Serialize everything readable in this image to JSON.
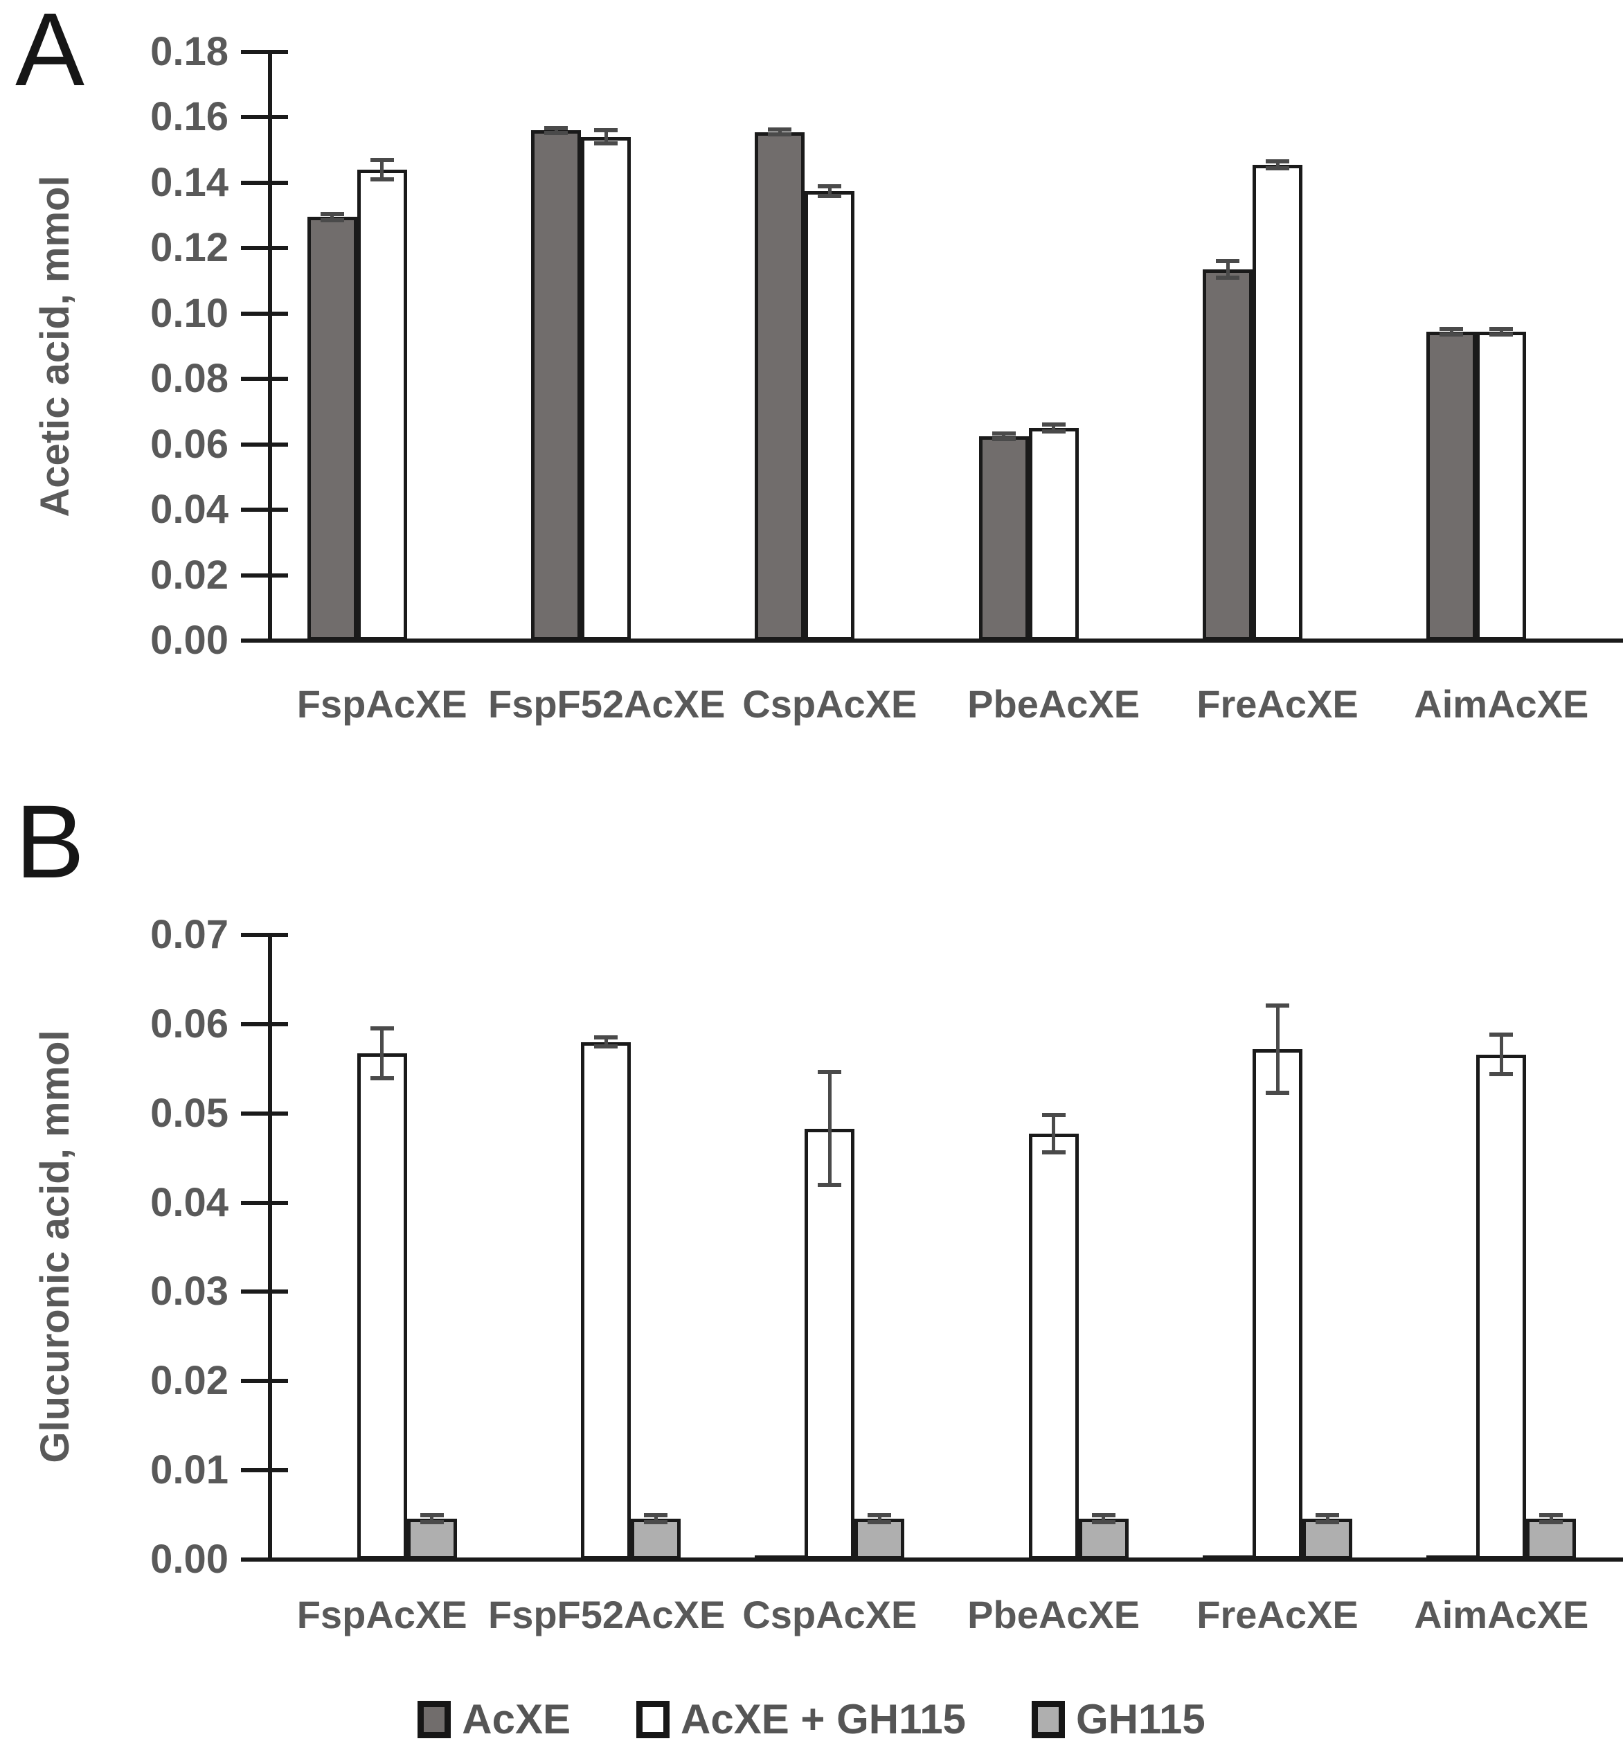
{
  "figure": {
    "panels": [
      {
        "label": "A"
      },
      {
        "label": "B"
      }
    ]
  },
  "legend": {
    "items": [
      {
        "label": "AcXE",
        "color": "#716D6C",
        "border_color": "#161616"
      },
      {
        "label": "AcXE + GH115",
        "color": "#FFFFFF",
        "border_color": "#161616"
      },
      {
        "label": "GH115",
        "color": "#AFAFAF",
        "border_color": "#161616"
      }
    ]
  },
  "chart_data": [
    {
      "type": "bar",
      "panel": "A",
      "title": "",
      "xlabel": "",
      "ylabel": "Acetic acid, mmol",
      "ylim": [
        0,
        0.18
      ],
      "ytick_step": 0.02,
      "ytick_labels": [
        "0.18",
        "0.16",
        "0.14",
        "0.12",
        "0.10",
        "0.08",
        "0.06",
        "0.04",
        "0.02",
        "0.00"
      ],
      "grid": false,
      "categories": [
        "FspAcXE",
        "FspF52AcXE",
        "CspAcXE",
        "PbeAcXE",
        "FreAcXE",
        "AimAcXE"
      ],
      "series": [
        {
          "name": "AcXE",
          "values": [
            0.1295,
            0.156,
            0.1555,
            0.0625,
            0.1135,
            0.0945
          ],
          "errors": [
            0.001,
            0.0008,
            0.0008,
            0.0008,
            0.0025,
            0.0008
          ]
        },
        {
          "name": "AcXE + GH115",
          "values": [
            0.144,
            0.154,
            0.1375,
            0.065,
            0.1455,
            0.0945
          ],
          "errors": [
            0.003,
            0.002,
            0.0015,
            0.001,
            0.001,
            0.0008
          ]
        },
        {
          "name": "GH115",
          "values": [
            0,
            0,
            0,
            0,
            0,
            0
          ],
          "errors": [
            0,
            0,
            0,
            0,
            0,
            0
          ]
        }
      ]
    },
    {
      "type": "bar",
      "panel": "B",
      "title": "",
      "xlabel": "",
      "ylabel": "Glucuronic acid, mmol",
      "ylim": [
        0,
        0.07
      ],
      "ytick_step": 0.01,
      "ytick_labels": [
        "0.07",
        "0.06",
        "0.05",
        "0.04",
        "0.03",
        "0.02",
        "0.01",
        "0.00"
      ],
      "grid": false,
      "categories": [
        "FspAcXE",
        "FspF52AcXE",
        "CspAcXE",
        "PbeAcXE",
        "FreAcXE",
        "AimAcXE"
      ],
      "series": [
        {
          "name": "AcXE",
          "values": [
            0,
            0,
            0.0003,
            0,
            0.0003,
            0.0003
          ],
          "errors": [
            0,
            0,
            0,
            0,
            0,
            0
          ]
        },
        {
          "name": "AcXE + GH115",
          "values": [
            0.0567,
            0.058,
            0.0483,
            0.0477,
            0.0572,
            0.0566
          ],
          "errors": [
            0.0028,
            0.0005,
            0.0063,
            0.0021,
            0.0049,
            0.0022
          ]
        },
        {
          "name": "GH115",
          "values": [
            0.0046,
            0.0046,
            0.0046,
            0.0046,
            0.0046,
            0.0046
          ],
          "errors": [
            0.0004,
            0.0004,
            0.0004,
            0.0004,
            0.0004,
            0.0004
          ]
        }
      ]
    }
  ]
}
